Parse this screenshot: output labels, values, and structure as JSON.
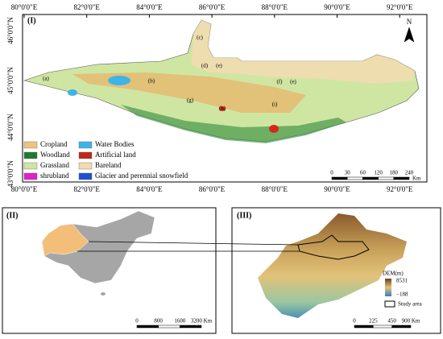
{
  "main": {
    "label": "(I)",
    "lon_labels": [
      "80°0'0\"E",
      "82°0'0\"E",
      "84°0'0\"E",
      "86°0'0\"E",
      "88°0'0\"E",
      "90°0'0\"E",
      "92°0'0\"E"
    ],
    "lat_labels": [
      "46°0'0\"N",
      "45°0'0\"N",
      "44°0'0\"N",
      "43°0'0\"N"
    ],
    "regions": [
      "(a)",
      "(b)",
      "(c)",
      "(d)",
      "(e)",
      "(f)",
      "(e)",
      "(g)",
      "(h)",
      "(i)"
    ],
    "legend": [
      "Cropland",
      "Woodland",
      "Grassland",
      "shrubland",
      "Water Bodies",
      "Artificial land",
      "Bareland",
      "Glacier and perennial snowfield"
    ],
    "scale": [
      "0",
      "30",
      "60",
      "120",
      "180",
      "240"
    ],
    "scale_unit": "Km",
    "north": "N"
  },
  "china": {
    "label": "(II)",
    "scale": [
      "0",
      "800",
      "1600",
      "3200 Km"
    ]
  },
  "dem": {
    "label": "(III)",
    "legend_title": "DEM(m)",
    "high": "8531",
    "low": "−188",
    "study_area": "Study area",
    "scale": [
      "0",
      "225",
      "450",
      "900 Km"
    ]
  }
}
